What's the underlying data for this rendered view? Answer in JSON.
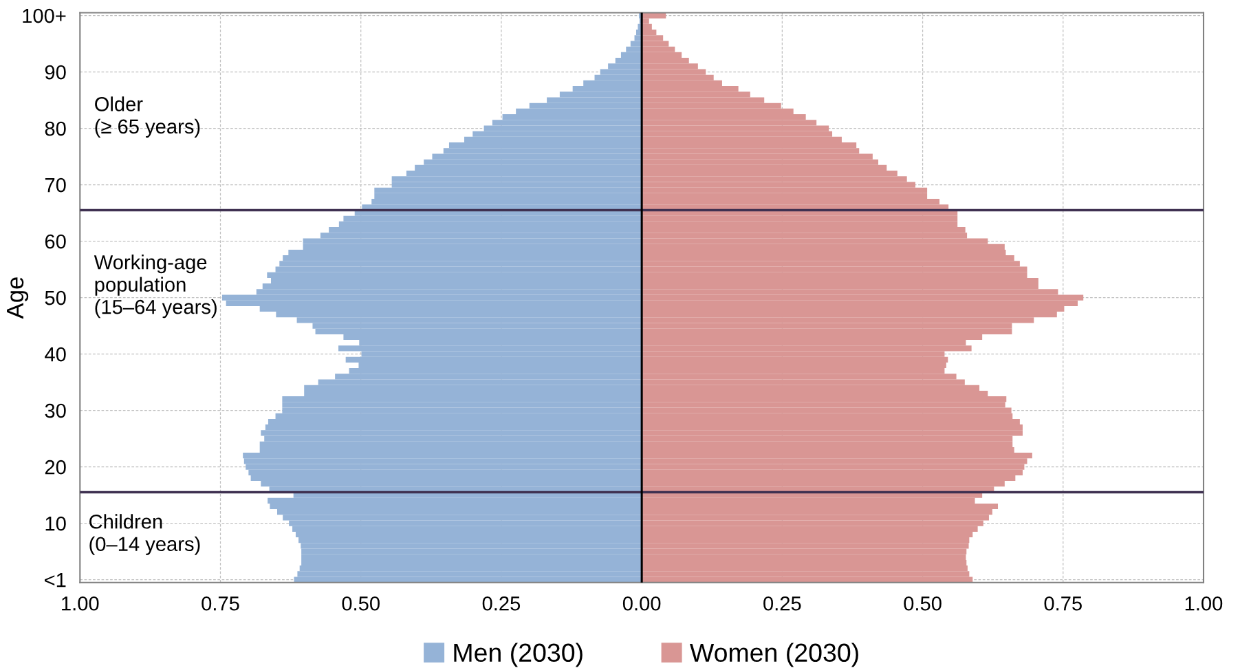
{
  "chart_data": {
    "type": "bar",
    "orientation": "horizontal",
    "stacked": true,
    "ylabel": "Age",
    "categories": [
      "100+",
      null,
      null,
      null,
      null,
      null,
      null,
      null,
      null,
      null,
      "90",
      null,
      null,
      null,
      null,
      null,
      null,
      null,
      null,
      null,
      "80",
      null,
      null,
      null,
      null,
      null,
      null,
      null,
      null,
      null,
      "70",
      null,
      null,
      null,
      null,
      null,
      null,
      null,
      null,
      null,
      "60",
      null,
      null,
      null,
      null,
      null,
      null,
      null,
      null,
      null,
      "50",
      null,
      null,
      null,
      null,
      null,
      null,
      null,
      null,
      null,
      "40",
      null,
      null,
      null,
      null,
      null,
      null,
      null,
      null,
      null,
      "30",
      null,
      null,
      null,
      null,
      null,
      null,
      null,
      null,
      null,
      "20",
      null,
      null,
      null,
      null,
      null,
      null,
      null,
      null,
      null,
      "10",
      null,
      null,
      null,
      null,
      null,
      null,
      null,
      null,
      null,
      "<1"
    ],
    "series": [
      {
        "name": "Men (2030)",
        "color": "#95b3d7",
        "values": [
          -0.005,
          -0.004,
          -0.007,
          -0.01,
          -0.013,
          -0.02,
          -0.028,
          -0.037,
          -0.047,
          -0.06,
          -0.074,
          -0.084,
          -0.104,
          -0.123,
          -0.146,
          -0.169,
          -0.2,
          -0.224,
          -0.248,
          -0.266,
          -0.281,
          -0.301,
          -0.316,
          -0.343,
          -0.353,
          -0.373,
          -0.388,
          -0.404,
          -0.419,
          -0.445,
          -0.445,
          -0.476,
          -0.476,
          -0.481,
          -0.498,
          -0.511,
          -0.531,
          -0.539,
          -0.557,
          -0.572,
          -0.603,
          -0.603,
          -0.629,
          -0.639,
          -0.645,
          -0.652,
          -0.667,
          -0.66,
          -0.675,
          -0.686,
          -0.747,
          -0.74,
          -0.68,
          -0.651,
          -0.614,
          -0.586,
          -0.581,
          -0.531,
          -0.503,
          -0.54,
          -0.499,
          -0.527,
          -0.504,
          -0.521,
          -0.546,
          -0.576,
          -0.601,
          -0.601,
          -0.64,
          -0.64,
          -0.64,
          -0.652,
          -0.665,
          -0.67,
          -0.678,
          -0.672,
          -0.68,
          -0.68,
          -0.71,
          -0.708,
          -0.705,
          -0.7,
          -0.696,
          -0.678,
          -0.663,
          -0.62,
          -0.666,
          -0.662,
          -0.649,
          -0.639,
          -0.628,
          -0.622,
          -0.616,
          -0.611,
          -0.607,
          -0.606,
          -0.606,
          -0.606,
          -0.609,
          -0.613,
          -0.619
        ]
      },
      {
        "name": "Women (2030)",
        "color": "#d99694",
        "values": [
          0.043,
          0.013,
          0.018,
          0.026,
          0.038,
          0.048,
          0.059,
          0.071,
          0.084,
          0.1,
          0.114,
          0.128,
          0.143,
          0.172,
          0.193,
          0.218,
          0.248,
          0.27,
          0.292,
          0.311,
          0.333,
          0.339,
          0.356,
          0.382,
          0.387,
          0.411,
          0.421,
          0.436,
          0.455,
          0.472,
          0.487,
          0.508,
          0.508,
          0.53,
          0.546,
          0.562,
          0.562,
          0.562,
          0.576,
          0.579,
          0.616,
          0.646,
          0.648,
          0.663,
          0.673,
          0.686,
          0.686,
          0.706,
          0.706,
          0.741,
          0.786,
          0.776,
          0.752,
          0.739,
          0.698,
          0.659,
          0.659,
          0.606,
          0.577,
          0.587,
          0.539,
          0.545,
          0.542,
          0.539,
          0.56,
          0.575,
          0.601,
          0.616,
          0.649,
          0.647,
          0.658,
          0.66,
          0.673,
          0.678,
          0.678,
          0.66,
          0.66,
          0.663,
          0.695,
          0.686,
          0.681,
          0.678,
          0.665,
          0.646,
          0.627,
          0.606,
          0.593,
          0.634,
          0.624,
          0.618,
          0.608,
          0.598,
          0.589,
          0.583,
          0.582,
          0.578,
          0.577,
          0.578,
          0.58,
          0.583,
          0.589
        ]
      }
    ],
    "xlim": [
      -1,
      1
    ],
    "xticks": [
      {
        "value": -1,
        "label": "1.00"
      },
      {
        "value": -0.75,
        "label": "0.75"
      },
      {
        "value": -0.5,
        "label": "0.50"
      },
      {
        "value": -0.25,
        "label": "0.25"
      },
      {
        "value": 0,
        "label": "0.00"
      },
      {
        "value": 0.25,
        "label": "0.25"
      },
      {
        "value": 0.5,
        "label": "0.50"
      },
      {
        "value": 0.75,
        "label": "0.75"
      },
      {
        "value": 1,
        "label": "1.00"
      }
    ],
    "ref_lines": [
      {
        "axis": "x",
        "value": 0,
        "color": "#000000"
      }
    ],
    "annotations": [
      "Older\n(≥ 65 years)",
      "Working-age\npopulation\n(15–64 years)",
      "Children\n(0–14 years)"
    ],
    "grid": true,
    "legend": "bottom"
  }
}
